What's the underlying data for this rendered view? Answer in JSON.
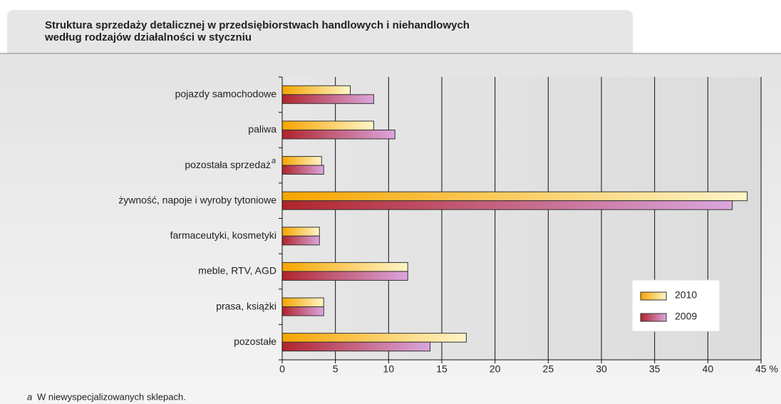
{
  "chart_data": {
    "type": "hbar",
    "title": [
      "Struktura sprzedaży detalicznej w przedsiębiorstwach handlowych i niehandlowych",
      "według rodzajów działalności w styczniu"
    ],
    "categories": [
      "pojazdy samochodowe",
      "paliwa",
      "pozostała sprzedaż",
      "żywność, napoje i wyroby  tytoniowe",
      "farmaceutyki, kosmetyki",
      "meble, RTV, AGD",
      "prasa, książki",
      "pozostałe"
    ],
    "category_marks": [
      null,
      null,
      "a",
      null,
      null,
      null,
      null,
      null
    ],
    "series": [
      {
        "name": "2010",
        "color": [
          "#f6a500",
          "#fff5c8"
        ],
        "values": [
          6.4,
          8.6,
          3.7,
          43.7,
          3.5,
          11.8,
          3.9,
          17.3
        ]
      },
      {
        "name": "2009",
        "color": [
          "#b0242c",
          "#dba6de"
        ],
        "values": [
          8.6,
          10.6,
          3.9,
          42.3,
          3.5,
          11.8,
          3.9,
          13.9
        ]
      }
    ],
    "xlim": [
      0,
      45
    ],
    "xticks": [
      0,
      5,
      10,
      15,
      20,
      25,
      30,
      35,
      40,
      {
        "value": 45,
        "label": "45 %"
      }
    ],
    "grid": true,
    "legend": "lower right",
    "footnote": {
      "mark": "a",
      "text": "W niewyspecjalizowanych sklepach."
    }
  }
}
